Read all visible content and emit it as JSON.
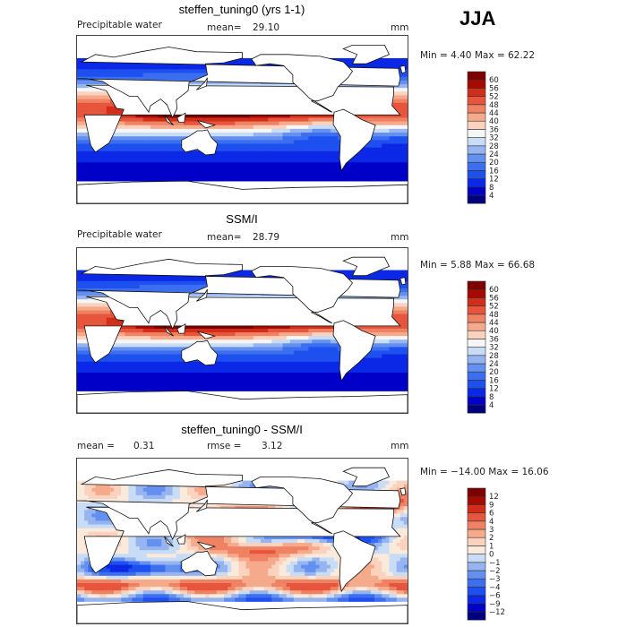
{
  "season": "JJA",
  "panels": [
    {
      "title": "steffen_tuning0 (yrs 1-1)",
      "left_label": "Precipitable water",
      "mid_label": "mean=",
      "mid_value": "29.10",
      "units": "mm",
      "stats": "Min =    4.40 Max =   62.22"
    },
    {
      "title": "SSM/I",
      "left_label": "Precipitable water",
      "mid_label": "mean=",
      "mid_value": "28.79",
      "units": "mm",
      "stats": "Min =    5.88 Max =   66.68"
    },
    {
      "title": "steffen_tuning0 - SSM/I",
      "left_label": "mean =",
      "left_value": "0.31",
      "mid_label": "rmse =",
      "mid_value": "3.12",
      "units": "mm",
      "stats": "Min = −14.00 Max =   16.06"
    }
  ],
  "chart_data": [
    {
      "type": "heatmap",
      "title": "steffen_tuning0 (yrs 1-1)",
      "variable": "Precipitable water",
      "units": "mm",
      "mean": 29.1,
      "min": 4.4,
      "max": 62.22,
      "colorbar_levels": [
        4,
        8,
        12,
        16,
        20,
        24,
        28,
        32,
        36,
        40,
        44,
        48,
        52,
        56,
        60
      ],
      "colorbar_colors": [
        "#00007e",
        "#0000c8",
        "#0a28e6",
        "#1e50f0",
        "#3c6ef0",
        "#6490f0",
        "#96b4f0",
        "#c8dcf6",
        "#f6f6f6",
        "#fad2be",
        "#f6aa8c",
        "#f08264",
        "#e6553c",
        "#d22d19",
        "#a50a00",
        "#7d0000"
      ]
    },
    {
      "type": "heatmap",
      "title": "SSM/I",
      "variable": "Precipitable water",
      "units": "mm",
      "mean": 28.79,
      "min": 5.88,
      "max": 66.68,
      "colorbar_levels": [
        4,
        8,
        12,
        16,
        20,
        24,
        28,
        32,
        36,
        40,
        44,
        48,
        52,
        56,
        60
      ],
      "colorbar_colors": [
        "#00007e",
        "#0000c8",
        "#0a28e6",
        "#1e50f0",
        "#3c6ef0",
        "#6490f0",
        "#96b4f0",
        "#c8dcf6",
        "#f6f6f6",
        "#fad2be",
        "#f6aa8c",
        "#f08264",
        "#e6553c",
        "#d22d19",
        "#a50a00",
        "#7d0000"
      ]
    },
    {
      "type": "heatmap",
      "title": "steffen_tuning0 - SSM/I",
      "units": "mm",
      "mean": 0.31,
      "rmse": 3.12,
      "min": -14.0,
      "max": 16.06,
      "colorbar_levels": [
        -12,
        -9,
        -6,
        -4,
        -3,
        -2,
        -1,
        0,
        1,
        2,
        3,
        4,
        6,
        9,
        12
      ],
      "colorbar_tick_labels": [
        "−12",
        "−9",
        "−6",
        "−4",
        "−3",
        "−2",
        "−1",
        "0",
        "1",
        "2",
        "3",
        "4",
        "6",
        "9",
        "12"
      ],
      "colorbar_colors": [
        "#00007e",
        "#0000c8",
        "#0a28e6",
        "#1e50f0",
        "#3c6ef0",
        "#6490f0",
        "#96b4f0",
        "#c8dcf6",
        "#faeadc",
        "#fad2be",
        "#f6aa8c",
        "#f08264",
        "#e6553c",
        "#d22d19",
        "#a50a00",
        "#7d0000"
      ]
    }
  ]
}
